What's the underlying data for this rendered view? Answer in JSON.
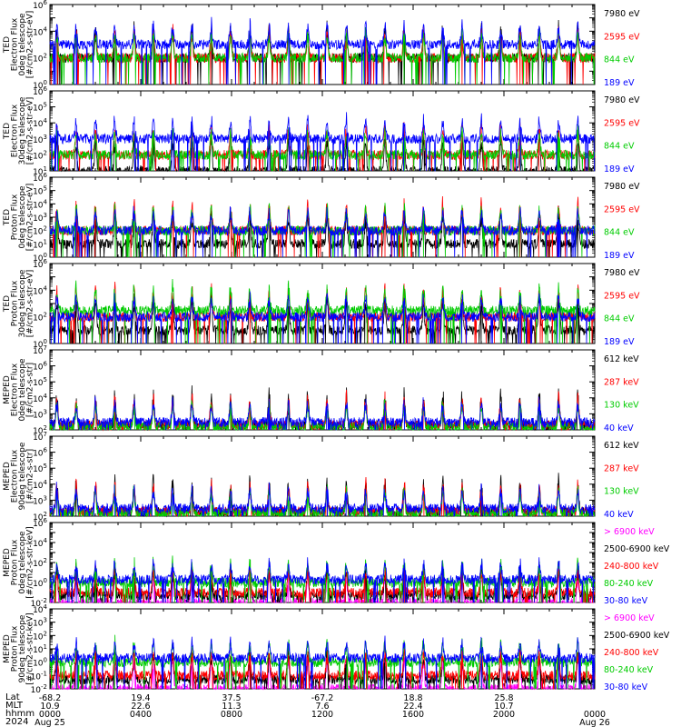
{
  "chart_data": [
    {
      "type": "line",
      "ylabel": [
        "TED",
        "Electron Flux",
        "0deg telescope",
        "[#/cm2-s-str-eV]"
      ],
      "y_tick_exponents": [
        "0",
        "2",
        "4",
        "6"
      ],
      "log_scale": true,
      "ylim": [
        1,
        1000000
      ],
      "series": [
        {
          "name": "7980 eV",
          "color": "#000000",
          "base": 100
        },
        {
          "name": "2595 eV",
          "color": "#ff0000",
          "base": 100
        },
        {
          "name": "844 eV",
          "color": "#00cc00",
          "base": 100
        },
        {
          "name": "189 eV",
          "color": "#0000ff",
          "base": 1000
        }
      ]
    },
    {
      "type": "line",
      "ylabel": [
        "TED",
        "Electron Flux",
        "30deg telescope",
        "[#/cm2-s-str-eV]"
      ],
      "y_tick_exponents": [
        "1",
        "2",
        "3",
        "4",
        "5",
        "6"
      ],
      "log_scale": true,
      "ylim": [
        10,
        1000000
      ],
      "series": [
        {
          "name": "7980 eV",
          "color": "#000000",
          "base": 10
        },
        {
          "name": "2595 eV",
          "color": "#ff0000",
          "base": 100
        },
        {
          "name": "844 eV",
          "color": "#00cc00",
          "base": 100
        },
        {
          "name": "189 eV",
          "color": "#0000ff",
          "base": 1000
        }
      ]
    },
    {
      "type": "line",
      "ylabel": [
        "TED",
        "Proton Flux",
        "0deg telescope",
        "[#/cm2-s-str-eV]"
      ],
      "y_tick_exponents": [
        "0",
        "1",
        "2",
        "3",
        "4",
        "5",
        "6"
      ],
      "log_scale": true,
      "ylim": [
        1,
        1000000
      ],
      "series": [
        {
          "name": "7980 eV",
          "color": "#000000",
          "base": 10
        },
        {
          "name": "2595 eV",
          "color": "#ff0000",
          "base": 100
        },
        {
          "name": "844 eV",
          "color": "#00cc00",
          "base": 100
        },
        {
          "name": "189 eV",
          "color": "#0000ff",
          "base": 100
        }
      ]
    },
    {
      "type": "line",
      "ylabel": [
        "TED",
        "Proton Flux",
        "30deg telescope",
        "[#/cm2-s-str-eV]"
      ],
      "y_tick_exponents": [
        "0",
        "2",
        "4",
        "6"
      ],
      "log_scale": true,
      "ylim": [
        1,
        1000000
      ],
      "series": [
        {
          "name": "7980 eV",
          "color": "#000000",
          "base": 10
        },
        {
          "name": "2595 eV",
          "color": "#ff0000",
          "base": 100
        },
        {
          "name": "844 eV",
          "color": "#00cc00",
          "base": 300
        },
        {
          "name": "189 eV",
          "color": "#0000ff",
          "base": 100
        }
      ]
    },
    {
      "type": "line",
      "ylabel": [
        "MEPED",
        "Electron Flux",
        "0deg telescope",
        "[#/cm2-s-str]"
      ],
      "y_tick_exponents": [
        "2",
        "3",
        "4",
        "5",
        "6",
        "7"
      ],
      "log_scale": true,
      "ylim": [
        100,
        10000000
      ],
      "series": [
        {
          "name": "612 keV",
          "color": "#000000",
          "base": 200
        },
        {
          "name": "287 keV",
          "color": "#ff0000",
          "base": 200
        },
        {
          "name": "130 keV",
          "color": "#00cc00",
          "base": 150
        },
        {
          "name": "40 keV",
          "color": "#0000ff",
          "base": 300
        }
      ]
    },
    {
      "type": "line",
      "ylabel": [
        "MEPED",
        "Electron Flux",
        "90deg telescope",
        "[#/cm2-s-str]"
      ],
      "y_tick_exponents": [
        "2",
        "3",
        "4",
        "5",
        "6",
        "7"
      ],
      "log_scale": true,
      "ylim": [
        100,
        10000000
      ],
      "series": [
        {
          "name": "612 keV",
          "color": "#000000",
          "base": 200
        },
        {
          "name": "287 keV",
          "color": "#ff0000",
          "base": 200
        },
        {
          "name": "130 keV",
          "color": "#00cc00",
          "base": 150
        },
        {
          "name": "40 keV",
          "color": "#0000ff",
          "base": 300
        }
      ]
    },
    {
      "type": "line",
      "ylabel": [
        "MEPED",
        "Proton Flux",
        "0deg telescope",
        "[#/cm2-s-str-keV]"
      ],
      "y_tick_exponents": [
        "-2",
        "0",
        "2",
        "4",
        "6"
      ],
      "log_scale": true,
      "ylim": [
        0.01,
        1000000
      ],
      "series": [
        {
          "name": "> 6900 keV",
          "color": "#ff00ff",
          "base": 0.01
        },
        {
          "name": "2500-6900 keV",
          "color": "#000000",
          "base": 0.05
        },
        {
          "name": "240-800 keV",
          "color": "#ff0000",
          "base": 0.1
        },
        {
          "name": "80-240 keV",
          "color": "#00cc00",
          "base": 1
        },
        {
          "name": "30-80 keV",
          "color": "#0000ff",
          "base": 2
        }
      ]
    },
    {
      "type": "line",
      "ylabel": [
        "MEPED",
        "Proton Flux",
        "90deg telescope",
        "[#/cm2-s-str-keV]"
      ],
      "y_tick_exponents": [
        "-2",
        "-1",
        "0",
        "1",
        "2",
        "3",
        "4"
      ],
      "log_scale": true,
      "ylim": [
        0.01,
        10000
      ],
      "series": [
        {
          "name": "> 6900 keV",
          "color": "#ff00ff",
          "base": 0.01
        },
        {
          "name": "2500-6900 keV",
          "color": "#000000",
          "base": 0.05
        },
        {
          "name": "240-800 keV",
          "color": "#ff0000",
          "base": 0.1
        },
        {
          "name": "80-240 keV",
          "color": "#00cc00",
          "base": 1
        },
        {
          "name": "30-80 keV",
          "color": "#0000ff",
          "base": 2
        }
      ]
    }
  ],
  "x_axis": {
    "row_labels": [
      "Lat",
      "MLT",
      "hhmm",
      "2024"
    ],
    "ticks": [
      {
        "hour": 0,
        "lat": "-68.2",
        "mlt": "10.9",
        "hhmm": "0000",
        "date": "Aug 25"
      },
      {
        "hour": 4,
        "lat": "19.4",
        "mlt": "22.6",
        "hhmm": "0400",
        "date": ""
      },
      {
        "hour": 8,
        "lat": "37.5",
        "mlt": "11.3",
        "hhmm": "0800",
        "date": ""
      },
      {
        "hour": 12,
        "lat": "-67.2",
        "mlt": "7.6",
        "hhmm": "1200",
        "date": ""
      },
      {
        "hour": 16,
        "lat": "18.8",
        "mlt": "22.4",
        "hhmm": "1600",
        "date": ""
      },
      {
        "hour": 20,
        "lat": "25.8",
        "mlt": "10.7",
        "hhmm": "2000",
        "date": ""
      },
      {
        "hour": 24,
        "lat": "",
        "mlt": "",
        "hhmm": "0000",
        "date": "Aug 26"
      }
    ],
    "xlim_hours": [
      0,
      24
    ]
  },
  "orbit_period_hours": 1.7
}
